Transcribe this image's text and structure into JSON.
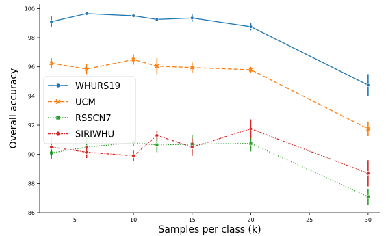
{
  "chart_data": {
    "type": "line",
    "xlabel": "Samples per class (k)",
    "ylabel": "Overall accuracy",
    "xlim": [
      2,
      31
    ],
    "ylim": [
      86,
      100.3
    ],
    "xticks": [
      5,
      10,
      15,
      20,
      25,
      30
    ],
    "yticks": [
      86,
      88,
      90,
      92,
      94,
      96,
      98,
      100
    ],
    "grid": false,
    "legend_position": "center-left",
    "series": [
      {
        "name": "WHURS19",
        "color": "#1f77b4",
        "linestyle": "solid",
        "marker": "circle",
        "points": [
          {
            "x": 3,
            "y": 99.1,
            "err": 0.35
          },
          {
            "x": 6,
            "y": 99.65,
            "err": 0.1
          },
          {
            "x": 10,
            "y": 99.5,
            "err": 0.1
          },
          {
            "x": 12,
            "y": 99.25,
            "err": 0.1
          },
          {
            "x": 15,
            "y": 99.35,
            "err": 0.25
          },
          {
            "x": 20,
            "y": 98.75,
            "err": 0.25
          },
          {
            "x": 30,
            "y": 94.75,
            "err": 0.75
          }
        ]
      },
      {
        "name": "UCM",
        "color": "#ff7f0e",
        "linestyle": "dashed",
        "marker": "x",
        "points": [
          {
            "x": 3,
            "y": 96.25,
            "err": 0.35
          },
          {
            "x": 6,
            "y": 95.85,
            "err": 0.35
          },
          {
            "x": 10,
            "y": 96.5,
            "err": 0.35
          },
          {
            "x": 12,
            "y": 96.05,
            "err": 0.55
          },
          {
            "x": 15,
            "y": 95.95,
            "err": 0.35
          },
          {
            "x": 20,
            "y": 95.8,
            "err": 0.2
          },
          {
            "x": 30,
            "y": 91.75,
            "err": 0.5
          }
        ]
      },
      {
        "name": "RSSCN7",
        "color": "#2ca02c",
        "linestyle": "dotted",
        "marker": "square",
        "points": [
          {
            "x": 3,
            "y": 90.1,
            "err": 0.4
          },
          {
            "x": 6,
            "y": 90.5,
            "err": 0.7
          },
          {
            "x": 10,
            "y": 90.8,
            "err": 0.2
          },
          {
            "x": 12,
            "y": 90.65,
            "err": 0.5
          },
          {
            "x": 15,
            "y": 90.7,
            "err": 0.6
          },
          {
            "x": 20,
            "y": 90.75,
            "err": 0.55
          },
          {
            "x": 30,
            "y": 87.1,
            "err": 0.55
          }
        ]
      },
      {
        "name": "SIRIWHU",
        "color": "#d62728",
        "linestyle": "dashdot",
        "marker": "diamond",
        "points": [
          {
            "x": 3,
            "y": 90.5,
            "err": 0.6
          },
          {
            "x": 6,
            "y": 90.15,
            "err": 0.4
          },
          {
            "x": 10,
            "y": 89.9,
            "err": 0.35
          },
          {
            "x": 12,
            "y": 91.3,
            "err": 0.3
          },
          {
            "x": 15,
            "y": 90.5,
            "err": 0.6
          },
          {
            "x": 20,
            "y": 91.75,
            "err": 0.65
          },
          {
            "x": 30,
            "y": 88.7,
            "err": 0.9
          }
        ]
      }
    ]
  }
}
